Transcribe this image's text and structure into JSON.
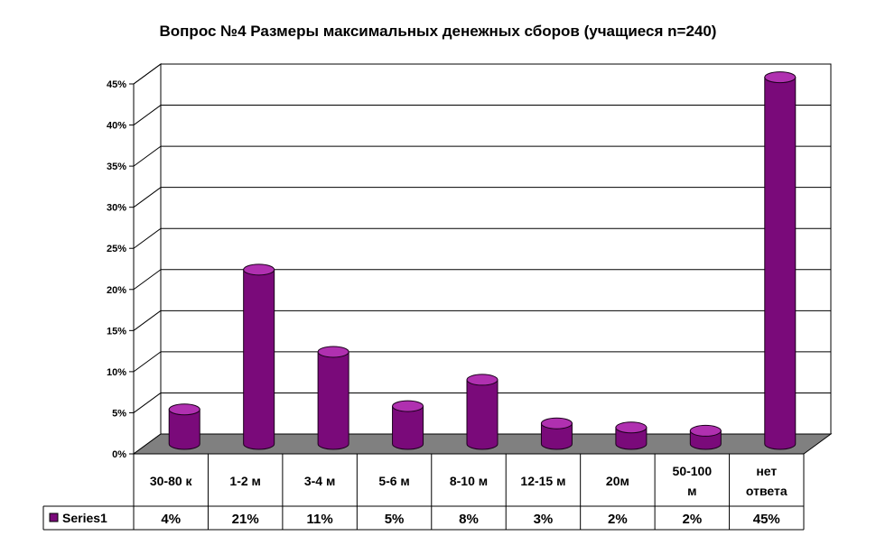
{
  "chart_data": {
    "type": "bar",
    "title": "Вопрос №4 Размеры максимальных денежных сборов (учащиеся n=240)",
    "categories": [
      [
        "30-80 к"
      ],
      [
        "1-2 м"
      ],
      [
        "3-4 м"
      ],
      [
        "5-6 м"
      ],
      [
        "8-10 м"
      ],
      [
        "12-15 м"
      ],
      [
        "20м"
      ],
      [
        "50-100",
        "м"
      ],
      [
        "нет",
        "ответа"
      ]
    ],
    "series": [
      {
        "name": "Series1",
        "values": [
          4.2,
          21.2,
          11.2,
          4.6,
          7.8,
          2.5,
          2.0,
          1.6,
          44.6
        ],
        "labels": [
          "4%",
          "21%",
          "11%",
          "5%",
          "8%",
          "3%",
          "2%",
          "2%",
          "45%"
        ]
      }
    ],
    "y_ticks": [
      "0%",
      "5%",
      "10%",
      "15%",
      "20%",
      "25%",
      "30%",
      "35%",
      "40%",
      "45%"
    ],
    "ylim": [
      0,
      45
    ],
    "grid": true,
    "legend": "left of data table",
    "colors": {
      "bar_side": "#7a0a7a",
      "bar_top": "#b030b0",
      "floor": "#808080",
      "grid": "#000000"
    }
  }
}
